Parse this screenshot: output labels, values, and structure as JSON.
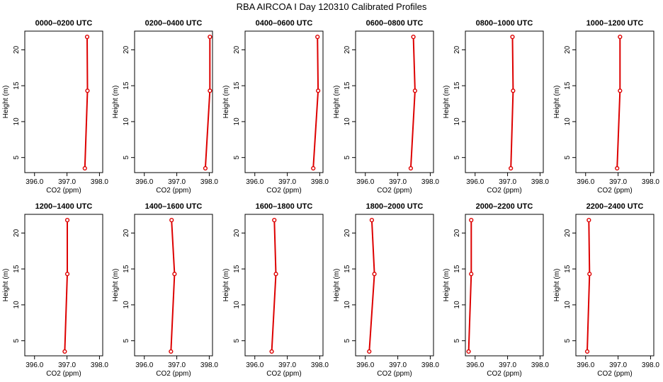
{
  "title": "RBA AIRCOA I  Day 120310  Calibrated Profiles",
  "chart_data": {
    "type": "line",
    "xlabel": "CO2 (ppm)",
    "ylabel": "Height (m)",
    "xlim": [
      395.7,
      398.1
    ],
    "ylim": [
      2.9,
      22.6
    ],
    "xticks": [
      "396.0",
      "397.0",
      "398.0"
    ],
    "yticks": [
      "5",
      "10",
      "15",
      "20"
    ],
    "line_color": "#dd0000",
    "panels": [
      {
        "title": "0000–0200 UTC",
        "points": [
          {
            "x": 397.55,
            "y": 3.5
          },
          {
            "x": 397.63,
            "y": 14.3
          },
          {
            "x": 397.62,
            "y": 21.8
          }
        ]
      },
      {
        "title": "0200–0400 UTC",
        "points": [
          {
            "x": 397.88,
            "y": 3.5
          },
          {
            "x": 398.02,
            "y": 14.3
          },
          {
            "x": 398.02,
            "y": 21.8
          }
        ]
      },
      {
        "title": "0400–0600 UTC",
        "points": [
          {
            "x": 397.8,
            "y": 3.5
          },
          {
            "x": 397.95,
            "y": 14.3
          },
          {
            "x": 397.93,
            "y": 21.8
          }
        ]
      },
      {
        "title": "0600–0800 UTC",
        "points": [
          {
            "x": 397.4,
            "y": 3.5
          },
          {
            "x": 397.53,
            "y": 14.3
          },
          {
            "x": 397.48,
            "y": 21.8
          }
        ]
      },
      {
        "title": "0800–1000 UTC",
        "points": [
          {
            "x": 397.1,
            "y": 3.5
          },
          {
            "x": 397.17,
            "y": 14.3
          },
          {
            "x": 397.15,
            "y": 21.8
          }
        ]
      },
      {
        "title": "1000–1200 UTC",
        "points": [
          {
            "x": 396.97,
            "y": 3.5
          },
          {
            "x": 397.06,
            "y": 14.3
          },
          {
            "x": 397.06,
            "y": 21.8
          }
        ]
      },
      {
        "title": "1200–1400 UTC",
        "points": [
          {
            "x": 396.93,
            "y": 3.5
          },
          {
            "x": 397.01,
            "y": 14.3
          },
          {
            "x": 397.01,
            "y": 21.8
          }
        ]
      },
      {
        "title": "1400–1600 UTC",
        "points": [
          {
            "x": 396.82,
            "y": 3.5
          },
          {
            "x": 396.93,
            "y": 14.3
          },
          {
            "x": 396.84,
            "y": 21.8
          }
        ]
      },
      {
        "title": "1600–1800 UTC",
        "points": [
          {
            "x": 396.52,
            "y": 3.5
          },
          {
            "x": 396.65,
            "y": 14.3
          },
          {
            "x": 396.6,
            "y": 21.8
          }
        ]
      },
      {
        "title": "1800–2000 UTC",
        "points": [
          {
            "x": 396.12,
            "y": 3.5
          },
          {
            "x": 396.28,
            "y": 14.3
          },
          {
            "x": 396.2,
            "y": 21.8
          }
        ]
      },
      {
        "title": "2000–2200 UTC",
        "points": [
          {
            "x": 395.8,
            "y": 3.5
          },
          {
            "x": 395.88,
            "y": 14.3
          },
          {
            "x": 395.88,
            "y": 21.8
          }
        ]
      },
      {
        "title": "2200–2400 UTC",
        "points": [
          {
            "x": 396.05,
            "y": 3.5
          },
          {
            "x": 396.12,
            "y": 14.3
          },
          {
            "x": 396.1,
            "y": 21.8
          }
        ]
      }
    ]
  }
}
